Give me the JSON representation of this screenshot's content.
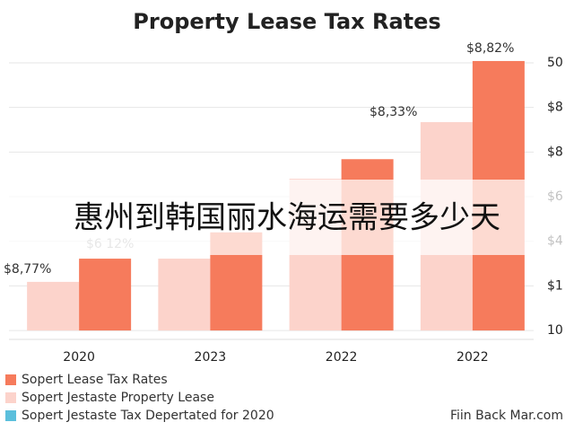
{
  "chart_data": {
    "type": "bar",
    "title": "Property Lease Tax Rates",
    "categories": [
      "2020",
      "2023",
      "2022",
      "2022"
    ],
    "series": [
      {
        "name": "Sopert Jestaste Property Lease",
        "color": "#fcd3cb",
        "values": [
          1.09,
          1.61,
          3.4,
          4.67
        ]
      },
      {
        "name": "Sopert Lease Tax Rates",
        "color": "#f67b5c",
        "values": [
          1.61,
          2.2,
          3.84,
          6.04
        ]
      },
      {
        "name": "Sopert Jestaste Tax Depertated for 2020",
        "color": "#5bbfdc",
        "values": [
          null,
          null,
          null,
          null
        ]
      }
    ],
    "ylim": [
      -0.2,
      6.2
    ],
    "yticks": [
      {
        "value": 0,
        "label": "10"
      },
      {
        "value": 1,
        "label": "$1"
      },
      {
        "value": 2,
        "label": "$4"
      },
      {
        "value": 3,
        "label": "$6"
      },
      {
        "value": 4,
        "label": "$8"
      },
      {
        "value": 5,
        "label": "$8"
      },
      {
        "value": 6,
        "label": "50"
      }
    ],
    "grid": true,
    "annotations": [
      "$8,77%",
      "$6 12%",
      "$8,33%",
      "$8,82%"
    ],
    "source": "Fiin Back Mar.com",
    "overlay_text": "惠州到韩国丽水海运需要多少天"
  }
}
